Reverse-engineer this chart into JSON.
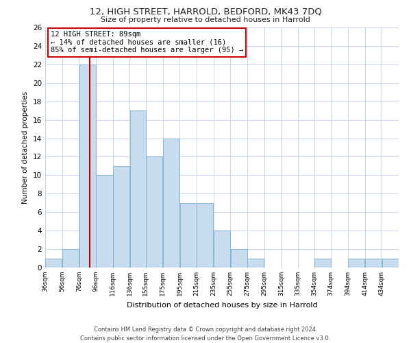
{
  "title1": "12, HIGH STREET, HARROLD, BEDFORD, MK43 7DQ",
  "title2": "Size of property relative to detached houses in Harrold",
  "xlabel": "Distribution of detached houses by size in Harrold",
  "ylabel": "Number of detached properties",
  "bar_color": "#c8dcf0",
  "bar_edge_color": "#7aaed0",
  "bin_labels": [
    "36sqm",
    "56sqm",
    "76sqm",
    "96sqm",
    "116sqm",
    "136sqm",
    "155sqm",
    "175sqm",
    "195sqm",
    "215sqm",
    "235sqm",
    "255sqm",
    "275sqm",
    "295sqm",
    "315sqm",
    "335sqm",
    "354sqm",
    "374sqm",
    "394sqm",
    "414sqm",
    "434sqm"
  ],
  "bar_heights": [
    1,
    2,
    22,
    10,
    11,
    17,
    12,
    14,
    7,
    7,
    4,
    2,
    1,
    0,
    0,
    0,
    1,
    0,
    1,
    1,
    1
  ],
  "ylim": [
    0,
    26
  ],
  "yticks": [
    0,
    2,
    4,
    6,
    8,
    10,
    12,
    14,
    16,
    18,
    20,
    22,
    24,
    26
  ],
  "bin_edges_numeric": [
    36,
    56,
    76,
    96,
    116,
    136,
    155,
    175,
    195,
    215,
    235,
    255,
    275,
    295,
    315,
    335,
    354,
    374,
    394,
    414,
    434,
    454
  ],
  "property_line_x": 89,
  "property_line_color": "#cc0000",
  "annotation_title": "12 HIGH STREET: 89sqm",
  "annotation_line1": "← 14% of detached houses are smaller (16)",
  "annotation_line2": "85% of semi-detached houses are larger (95) →",
  "annotation_box_color": "#ffffff",
  "annotation_box_edge": "#cc0000",
  "footer1": "Contains HM Land Registry data © Crown copyright and database right 2024.",
  "footer2": "Contains public sector information licensed under the Open Government Licence v3.0.",
  "background_color": "#ffffff",
  "grid_color": "#c8d4e8"
}
